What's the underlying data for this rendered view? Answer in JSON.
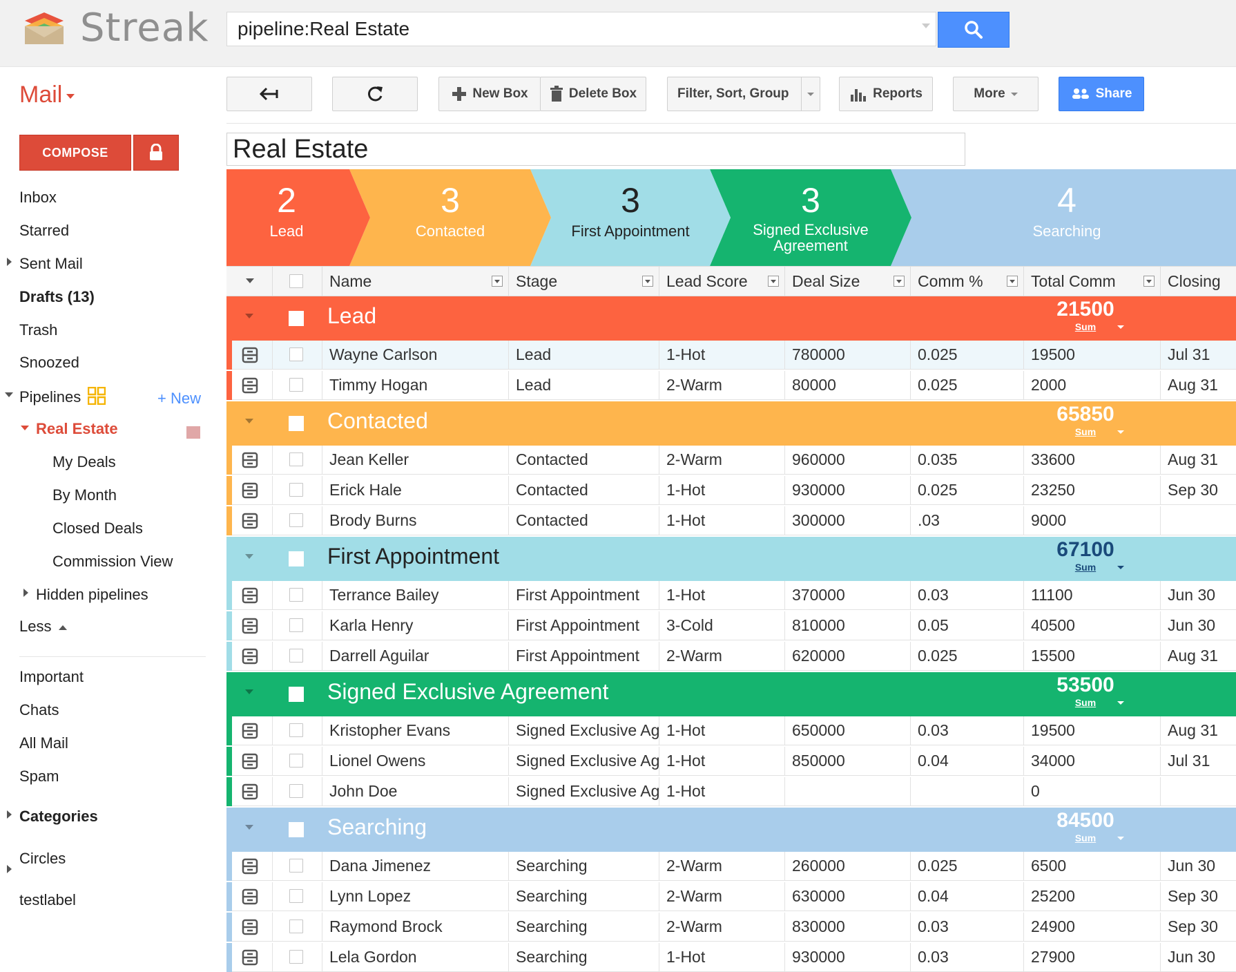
{
  "app": {
    "name": "Streak"
  },
  "search": {
    "value": "pipeline:Real Estate"
  },
  "nav": {
    "mail_label": "Mail",
    "compose_label": "COMPOSE",
    "items": {
      "inbox": "Inbox",
      "starred": "Starred",
      "sent": "Sent Mail",
      "drafts": "Drafts (13)",
      "trash": "Trash",
      "snoozed": "Snoozed",
      "pipelines": "Pipelines",
      "new": "+ New",
      "real_estate": "Real Estate",
      "my_deals": "My Deals",
      "by_month": "By Month",
      "closed_deals": "Closed Deals",
      "commission_view": "Commission View",
      "hidden_pipelines": "Hidden pipelines",
      "less": "Less",
      "important": "Important",
      "chats": "Chats",
      "all_mail": "All Mail",
      "spam": "Spam",
      "categories": "Categories",
      "circles": "Circles",
      "testlabel": "testlabel"
    }
  },
  "toolbar": {
    "new_box": "New Box",
    "delete_box": "Delete Box",
    "filter": "Filter, Sort, Group",
    "reports": "Reports",
    "more": "More",
    "share": "Share"
  },
  "pipeline": {
    "title": "Real Estate",
    "stages": [
      {
        "count": "2",
        "label": "Lead",
        "color": "#fd6340",
        "text_color": "#ffffff"
      },
      {
        "count": "3",
        "label": "Contacted",
        "color": "#feb54d",
        "text_color": "#ffffff"
      },
      {
        "count": "3",
        "label": "First Appointment",
        "color": "#a1dde7",
        "text_color": "#222222"
      },
      {
        "count": "3",
        "label": "Signed Exclusive",
        "label2": "Agreement",
        "color": "#15b46f",
        "text_color": "#ffffff"
      },
      {
        "count": "4",
        "label": "Searching",
        "color": "#a9cdeb",
        "text_color": "#ffffff"
      }
    ]
  },
  "columns": [
    "Name",
    "Stage",
    "Lead Score",
    "Deal Size",
    "Comm %",
    "Total Comm",
    "Closing"
  ],
  "groups": [
    {
      "name": "Lead",
      "sum": "21500",
      "sum_label": "Sum",
      "color": "#fd6340",
      "text_color": "#ffffff",
      "sum_color": "#ffffff",
      "rows": [
        [
          "Wayne Carlson",
          "Lead",
          "1-Hot",
          "780000",
          "0.025",
          "19500",
          "Jul 31"
        ],
        [
          "Timmy Hogan",
          "Lead",
          "2-Warm",
          "80000",
          "0.025",
          "2000",
          "Aug 31"
        ]
      ]
    },
    {
      "name": "Contacted",
      "sum": "65850",
      "sum_label": "Sum",
      "color": "#feb54d",
      "text_color": "#ffffff",
      "sum_color": "#ffffff",
      "rows": [
        [
          "Jean Keller",
          "Contacted",
          "2-Warm",
          "960000",
          "0.035",
          "33600",
          "Aug 31"
        ],
        [
          "Erick Hale",
          "Contacted",
          "1-Hot",
          "930000",
          "0.025",
          "23250",
          "Sep 30"
        ],
        [
          "Brody Burns",
          "Contacted",
          "1-Hot",
          "300000",
          ".03",
          "9000",
          ""
        ]
      ]
    },
    {
      "name": "First Appointment",
      "sum": "67100",
      "sum_label": "Sum",
      "color": "#a1dde7",
      "text_color": "#222222",
      "sum_color": "#1a4a7a",
      "rows": [
        [
          "Terrance Bailey",
          "First Appointment",
          "1-Hot",
          "370000",
          "0.03",
          "11100",
          "Jun 30"
        ],
        [
          "Karla Henry",
          "First Appointment",
          "3-Cold",
          "810000",
          "0.05",
          "40500",
          "Jun 30"
        ],
        [
          "Darrell Aguilar",
          "First Appointment",
          "2-Warm",
          "620000",
          "0.025",
          "15500",
          "Aug 31"
        ]
      ]
    },
    {
      "name": "Signed Exclusive Agreement",
      "sum": "53500",
      "sum_label": "Sum",
      "color": "#15b46f",
      "text_color": "#ffffff",
      "sum_color": "#ffffff",
      "rows": [
        [
          "Kristopher Evans",
          "Signed Exclusive Agreement",
          "1-Hot",
          "650000",
          "0.03",
          "19500",
          "Aug 31"
        ],
        [
          "Lionel Owens",
          "Signed Exclusive Agreement",
          "1-Hot",
          "850000",
          "0.04",
          "34000",
          "Jul 31"
        ],
        [
          "John Doe",
          "Signed Exclusive Agreement",
          "1-Hot",
          "",
          "",
          "0",
          ""
        ]
      ]
    },
    {
      "name": "Searching",
      "sum": "84500",
      "sum_label": "Sum",
      "color": "#a9cdeb",
      "text_color": "#ffffff",
      "sum_color": "#ffffff",
      "rows": [
        [
          "Dana Jimenez",
          "Searching",
          "2-Warm",
          "260000",
          "0.025",
          "6500",
          "Jun 30"
        ],
        [
          "Lynn Lopez",
          "Searching",
          "2-Warm",
          "630000",
          "0.04",
          "25200",
          "Sep 30"
        ],
        [
          "Raymond Brock",
          "Searching",
          "2-Warm",
          "830000",
          "0.03",
          "24900",
          "Sep 30"
        ],
        [
          "Lela Gordon",
          "Searching",
          "1-Hot",
          "930000",
          "0.03",
          "27900",
          "Jun 30"
        ]
      ]
    }
  ]
}
